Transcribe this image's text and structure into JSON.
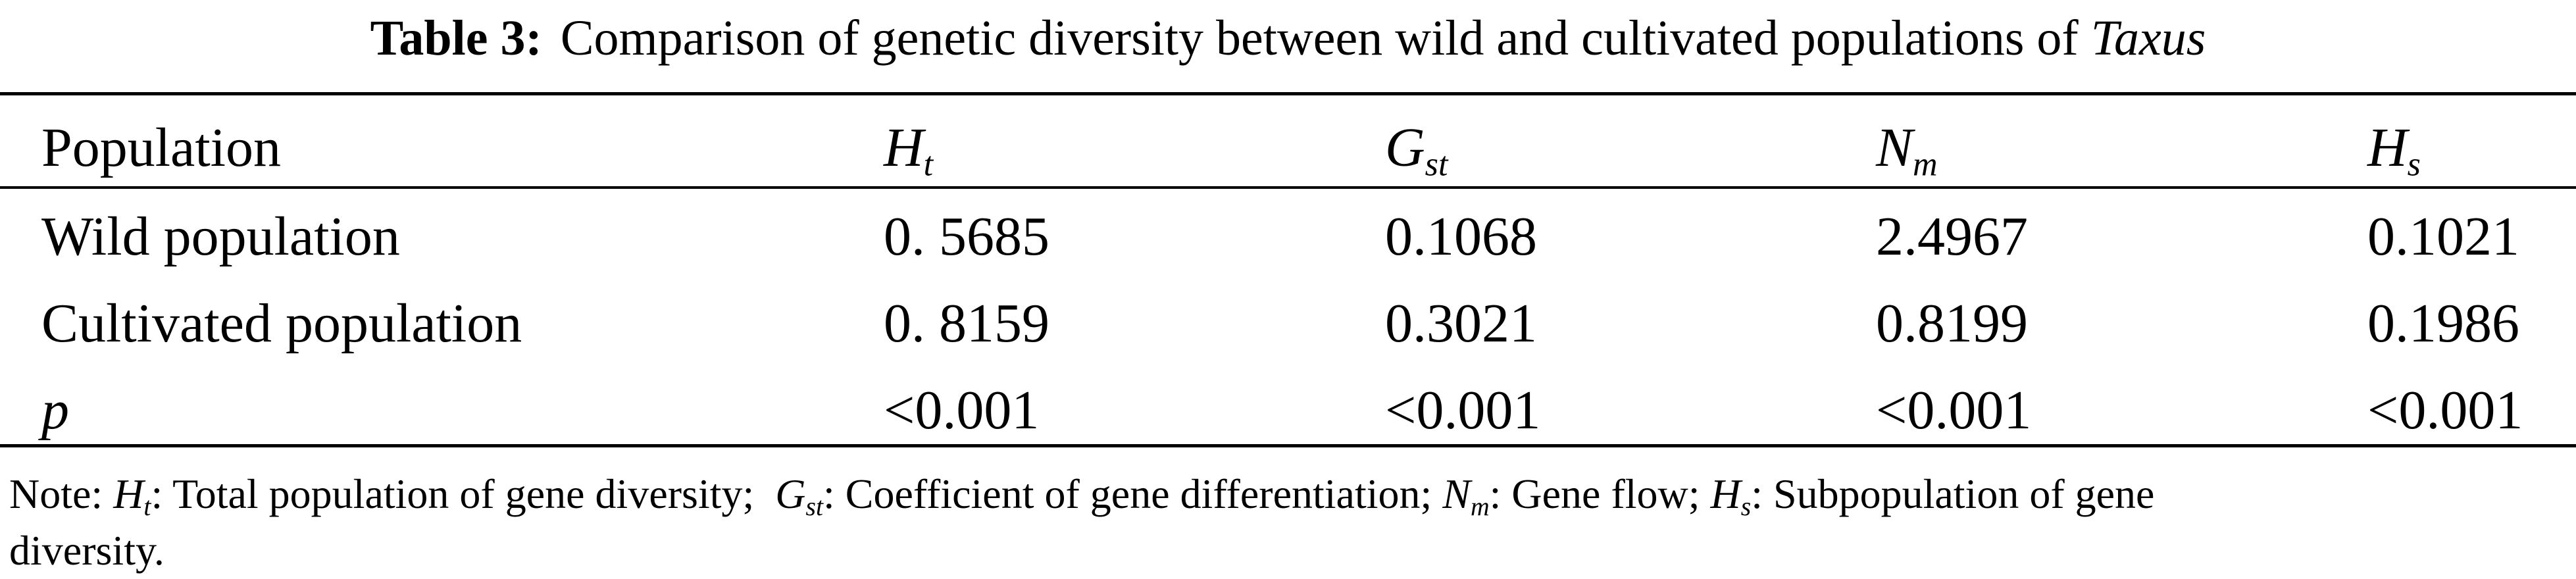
{
  "caption": {
    "label": "Table 3:",
    "text": "Comparison of genetic diversity between wild and cultivated populations of",
    "taxon": "Taxus"
  },
  "table": {
    "headers": [
      {
        "main": "Population",
        "sub": ""
      },
      {
        "main": "H",
        "sub": "t"
      },
      {
        "main": "G",
        "sub": "st"
      },
      {
        "main": "N",
        "sub": "m"
      },
      {
        "main": "H",
        "sub": "s"
      }
    ],
    "rows": [
      {
        "label": "Wild population",
        "italic": false,
        "values": [
          "0. 5685",
          "0.1068",
          "2.4967",
          "0.1021"
        ]
      },
      {
        "label": "Cultivated population",
        "italic": false,
        "values": [
          "0. 8159",
          "0.3021",
          "0.8199",
          "0.1986"
        ]
      },
      {
        "label": "p",
        "italic": true,
        "values": [
          "<0.001",
          "<0.001",
          "<0.001",
          "<0.001"
        ]
      }
    ]
  },
  "note": {
    "prefix": "Note:",
    "items": [
      {
        "sym": "H",
        "sub": "t",
        "desc": ": Total population of gene diversity;"
      },
      {
        "sym": "G",
        "sub": "st",
        "desc": ": Coefficient of gene differentiation;"
      },
      {
        "sym": "N",
        "sub": "m",
        "desc": ": Gene flow;"
      },
      {
        "sym": "H",
        "sub": "s",
        "desc": ": Subpopulation of gene"
      }
    ],
    "continuation": "diversity."
  }
}
